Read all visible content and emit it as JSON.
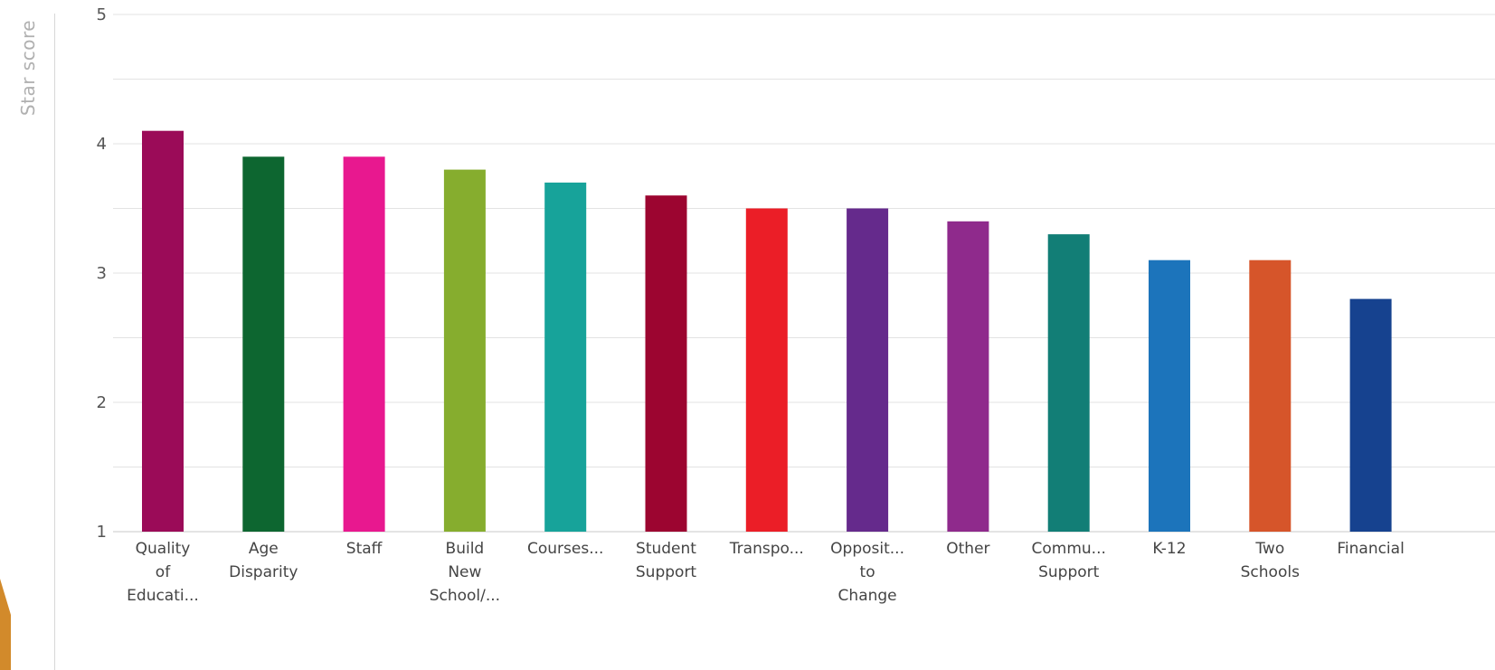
{
  "chart_data": {
    "type": "bar",
    "ylabel": "Star score",
    "xlabel": "",
    "ylim": [
      1,
      5
    ],
    "yticks": [
      1,
      2,
      3,
      4,
      5
    ],
    "grid": true,
    "categories": [
      [
        "Quality",
        "of",
        "Educati..."
      ],
      [
        "Age",
        "Disparity"
      ],
      [
        "Staff"
      ],
      [
        "Build",
        "New",
        "School/..."
      ],
      [
        "Courses..."
      ],
      [
        "Student",
        "Support"
      ],
      [
        "Transpo..."
      ],
      [
        "Opposit...",
        "to",
        "Change"
      ],
      [
        "Other"
      ],
      [
        "Commu...",
        "Support"
      ],
      [
        "K-12"
      ],
      [
        "Two",
        "Schools"
      ],
      [
        "Financial"
      ]
    ],
    "values": [
      4.1,
      3.9,
      3.9,
      3.8,
      3.7,
      3.6,
      3.5,
      3.5,
      3.4,
      3.3,
      3.1,
      3.1,
      2.8
    ],
    "colors": [
      "#9b0b58",
      "#0d6630",
      "#e8188f",
      "#86ad2e",
      "#17a39a",
      "#9c0530",
      "#eb1e27",
      "#652a8c",
      "#8f2a8c",
      "#127e76",
      "#1c74bb",
      "#d6552a",
      "#16428f"
    ]
  },
  "decor": {
    "tab_color": "#d28a2b"
  }
}
